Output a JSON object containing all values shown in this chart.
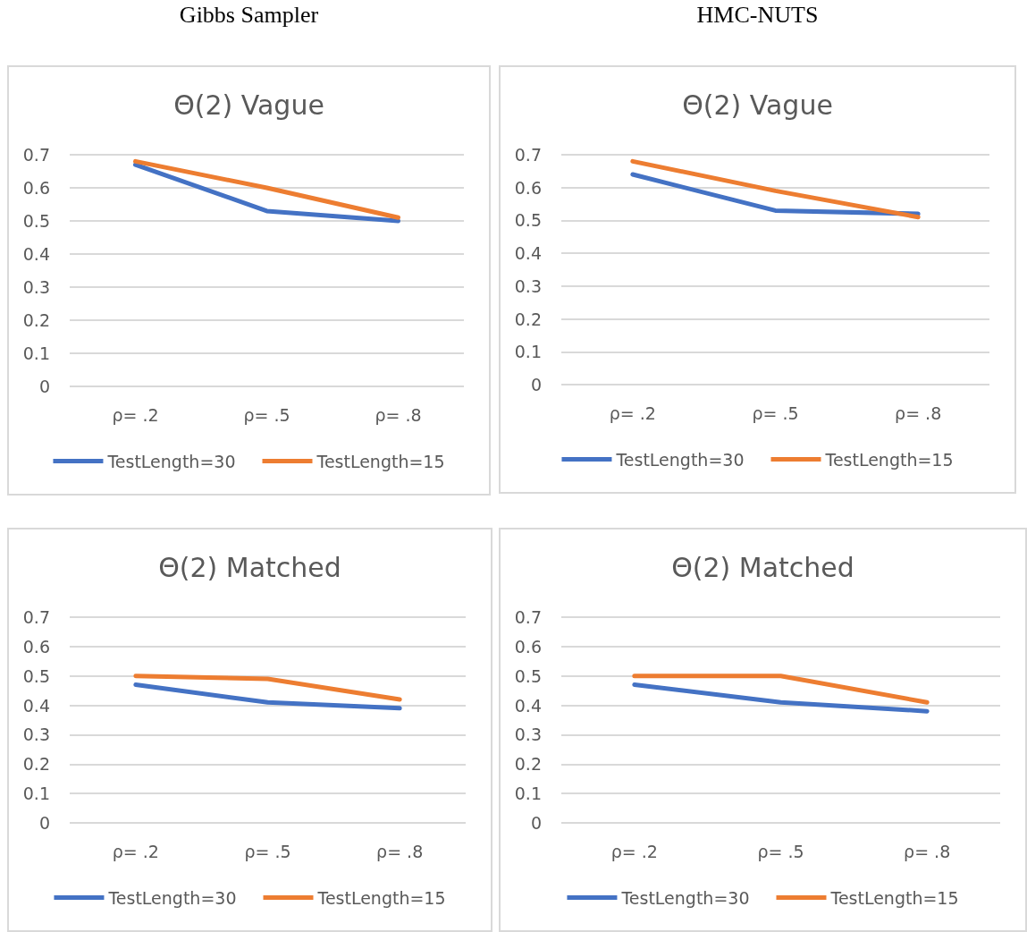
{
  "chart_data": [
    {
      "type": "line",
      "title": "Θ(2) Vague",
      "annotations": [
        "Gibbs Sampler"
      ],
      "categories": [
        "ρ= .2",
        "ρ= .5",
        "ρ= .8"
      ],
      "series": [
        {
          "name": "TestLength=30",
          "color": "#4472c4",
          "values": [
            0.67,
            0.53,
            0.5
          ]
        },
        {
          "name": "TestLength=15",
          "color": "#ed7d31",
          "values": [
            0.68,
            0.6,
            0.51
          ]
        }
      ],
      "ylim": [
        0,
        0.7
      ],
      "yticks": [
        0,
        0.1,
        0.2,
        0.3,
        0.4,
        0.5,
        0.6,
        0.7
      ],
      "grid": "y",
      "legend": "bottom",
      "marker": "none",
      "line_style": "solid"
    },
    {
      "type": "line",
      "title": "Θ(2) Vague",
      "annotations": [
        "HMC-NUTS"
      ],
      "categories": [
        "ρ= .2",
        "ρ= .5",
        "ρ= .8"
      ],
      "series": [
        {
          "name": "TestLength=30",
          "color": "#4472c4",
          "values": [
            0.64,
            0.53,
            0.52
          ]
        },
        {
          "name": "TestLength=15",
          "color": "#ed7d31",
          "values": [
            0.68,
            0.59,
            0.51
          ]
        }
      ],
      "ylim": [
        0,
        0.7
      ],
      "yticks": [
        0,
        0.1,
        0.2,
        0.3,
        0.4,
        0.5,
        0.6,
        0.7
      ],
      "grid": "y",
      "legend": "bottom",
      "marker": "none",
      "line_style": "solid"
    },
    {
      "type": "line",
      "title": "Θ(2) Matched",
      "categories": [
        "ρ= .2",
        "ρ= .5",
        "ρ= .8"
      ],
      "series": [
        {
          "name": "TestLength=30",
          "color": "#4472c4",
          "values": [
            0.47,
            0.41,
            0.39
          ]
        },
        {
          "name": "TestLength=15",
          "color": "#ed7d31",
          "values": [
            0.5,
            0.49,
            0.42
          ]
        }
      ],
      "ylim": [
        0,
        0.7
      ],
      "yticks": [
        0,
        0.1,
        0.2,
        0.3,
        0.4,
        0.5,
        0.6,
        0.7
      ],
      "grid": "y",
      "legend": "bottom",
      "marker": "none",
      "line_style": "solid"
    },
    {
      "type": "line",
      "title": "Θ(2) Matched",
      "categories": [
        "ρ= .2",
        "ρ= .5",
        "ρ= .8"
      ],
      "series": [
        {
          "name": "TestLength=30",
          "color": "#4472c4",
          "values": [
            0.47,
            0.41,
            0.38
          ]
        },
        {
          "name": "TestLength=15",
          "color": "#ed7d31",
          "values": [
            0.5,
            0.5,
            0.41
          ]
        }
      ],
      "ylim": [
        0,
        0.7
      ],
      "yticks": [
        0,
        0.1,
        0.2,
        0.3,
        0.4,
        0.5,
        0.6,
        0.7
      ],
      "grid": "y",
      "legend": "bottom",
      "marker": "none",
      "line_style": "solid"
    }
  ]
}
